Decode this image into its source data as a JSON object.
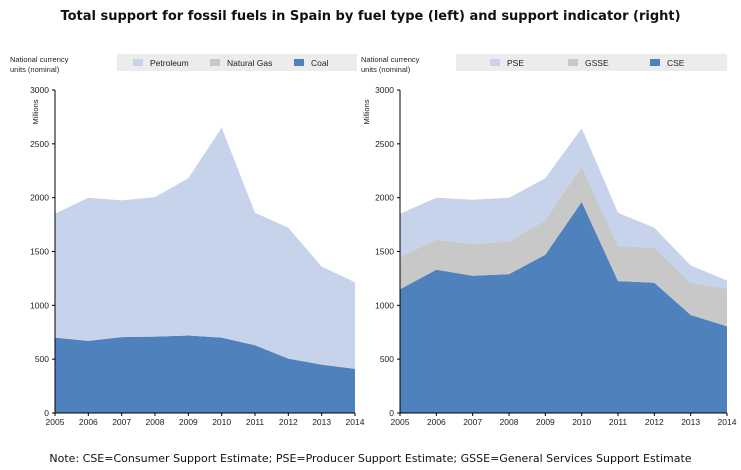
{
  "header": {
    "title": "Total support for fossil fuels in Spain by fuel type (left) and support indicator (right)",
    "note": "Note: CSE=Consumer Support Estimate; PSE=Producer Support Estimate; GSSE=General Services Support Estimate"
  },
  "chart_data": [
    {
      "type": "area",
      "stacked": true,
      "unit_label": [
        "National currency",
        "units (nominal)"
      ],
      "ylabel": "Millions",
      "ylim": [
        0,
        3000
      ],
      "yticks": [
        0,
        500,
        1000,
        1500,
        2000,
        2500,
        3000
      ],
      "x": [
        "2005",
        "2006",
        "2007",
        "2008",
        "2009",
        "2010",
        "2011",
        "2012",
        "2013",
        "2014"
      ],
      "legend_position": "top",
      "series": [
        {
          "name": "Coal",
          "color": "#4f81bd",
          "values": [
            700,
            670,
            705,
            710,
            720,
            700,
            630,
            505,
            450,
            410
          ]
        },
        {
          "name": "Natural Gas",
          "color": "#c8c8c8",
          "values": [
            0,
            0,
            0,
            0,
            0,
            0,
            0,
            0,
            0,
            0
          ]
        },
        {
          "name": "Petroleum",
          "color": "#c6d3ea",
          "values": [
            1150,
            1330,
            1270,
            1295,
            1460,
            1950,
            1230,
            1215,
            910,
            805
          ]
        }
      ],
      "legend_order": [
        "Petroleum",
        "Natural Gas",
        "Coal"
      ]
    },
    {
      "type": "area",
      "stacked": true,
      "unit_label": [
        "National currency",
        "units (nominal)"
      ],
      "ylabel": "Millions",
      "ylim": [
        0,
        3000
      ],
      "yticks": [
        0,
        500,
        1000,
        1500,
        2000,
        2500,
        3000
      ],
      "x": [
        "2005",
        "2006",
        "2007",
        "2008",
        "2009",
        "2010",
        "2011",
        "2012",
        "2013",
        "2014"
      ],
      "legend_position": "top",
      "series": [
        {
          "name": "CSE",
          "color": "#4f81bd",
          "values": [
            1150,
            1330,
            1275,
            1290,
            1470,
            1960,
            1225,
            1210,
            910,
            805
          ]
        },
        {
          "name": "GSSE",
          "color": "#c8c8c8",
          "values": [
            300,
            280,
            295,
            305,
            320,
            330,
            325,
            325,
            300,
            350
          ]
        },
        {
          "name": "PSE",
          "color": "#c6d3ea",
          "values": [
            400,
            390,
            410,
            405,
            390,
            355,
            310,
            185,
            160,
            75
          ]
        }
      ],
      "legend_order": [
        "PSE",
        "GSSE",
        "CSE"
      ]
    }
  ]
}
